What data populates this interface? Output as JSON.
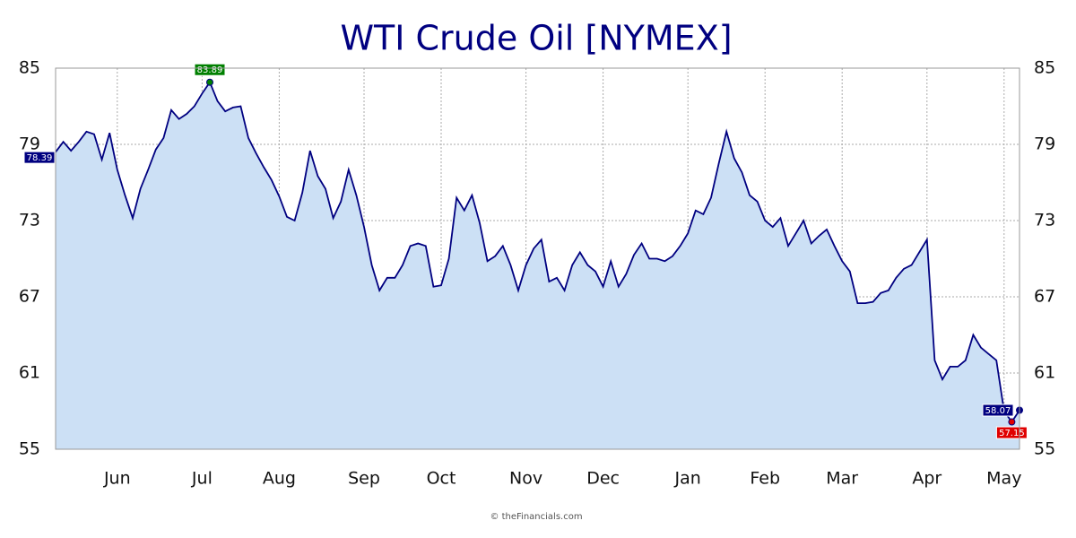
{
  "chart_data": {
    "type": "area",
    "title": "WTI Crude Oil [NYMEX]",
    "source": "© theFinancials.com",
    "categories": [
      null,
      null,
      null,
      null,
      null,
      null,
      null,
      null,
      "Jun",
      null,
      null,
      null,
      null,
      null,
      null,
      null,
      null,
      null,
      null,
      "Jul",
      null,
      null,
      null,
      null,
      null,
      null,
      null,
      null,
      null,
      "Aug",
      null,
      null,
      null,
      null,
      null,
      null,
      null,
      null,
      null,
      null,
      "Sep",
      null,
      null,
      null,
      null,
      null,
      null,
      null,
      null,
      null,
      "Oct",
      null,
      null,
      null,
      null,
      null,
      null,
      null,
      null,
      null,
      null,
      "Nov",
      null,
      null,
      null,
      null,
      null,
      null,
      null,
      null,
      null,
      "Dec",
      null,
      null,
      null,
      null,
      null,
      null,
      null,
      null,
      null,
      null,
      "Jan",
      null,
      null,
      null,
      null,
      null,
      null,
      null,
      null,
      null,
      "Feb",
      null,
      null,
      null,
      null,
      null,
      null,
      null,
      null,
      null,
      "Mar",
      null,
      null,
      null,
      null,
      null,
      null,
      null,
      null,
      null,
      null,
      "Apr",
      null,
      null,
      null,
      null,
      null,
      null,
      null,
      null,
      null,
      "May",
      null,
      null
    ],
    "series": [
      {
        "name": "WTI Crude Oil",
        "color": "#000080",
        "fill": "#cce0f5",
        "values": [
          78.39,
          79.2,
          78.5,
          79.2,
          80.0,
          79.8,
          77.8,
          79.9,
          77.0,
          75.0,
          73.2,
          75.5,
          77.0,
          78.6,
          79.5,
          81.7,
          81.0,
          81.4,
          82.0,
          83.0,
          83.89,
          82.4,
          81.6,
          81.9,
          82.0,
          79.5,
          78.3,
          77.2,
          76.2,
          74.9,
          73.3,
          73.0,
          75.2,
          78.5,
          76.5,
          75.5,
          73.2,
          74.5,
          77.0,
          75.0,
          72.5,
          69.5,
          67.5,
          68.5,
          68.5,
          69.5,
          71.0,
          71.2,
          71.0,
          67.8,
          67.9,
          70.0,
          74.8,
          73.8,
          75.0,
          72.8,
          69.8,
          70.2,
          71.0,
          69.5,
          67.5,
          69.5,
          70.8,
          71.5,
          68.2,
          68.5,
          67.5,
          69.5,
          70.5,
          69.5,
          69.0,
          67.8,
          69.8,
          67.8,
          68.8,
          70.3,
          71.2,
          70.0,
          70.0,
          69.8,
          70.2,
          71.0,
          72.0,
          73.8,
          73.5,
          74.8,
          77.5,
          80.0,
          77.9,
          76.8,
          75.0,
          74.5,
          73.0,
          72.5,
          73.2,
          71.0,
          72.0,
          73.0,
          71.2,
          71.8,
          72.3,
          71.0,
          69.8,
          69.0,
          66.5,
          66.5,
          66.6,
          67.3,
          67.5,
          68.5,
          69.2,
          69.5,
          70.5,
          71.5,
          62.0,
          60.5,
          61.5,
          61.5,
          62.0,
          64.0,
          63.0,
          62.5,
          62.0,
          58.0,
          57.15,
          58.07
        ]
      }
    ],
    "ylim": [
      55,
      85
    ],
    "yticks": [
      55,
      61,
      67,
      73,
      79,
      85
    ],
    "grid": true,
    "first_color": "#000080",
    "max_color": "#008000",
    "min_color": "#e00000",
    "last_color": "#000080"
  }
}
